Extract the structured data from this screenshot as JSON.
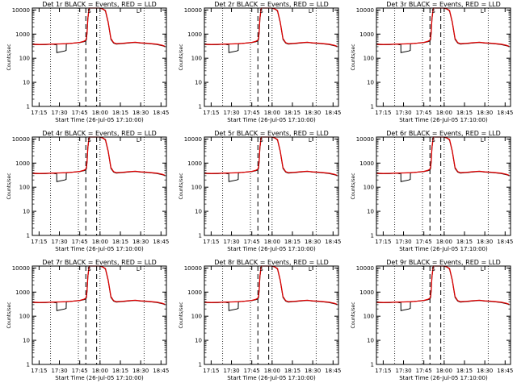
{
  "chart_data": {
    "type": "line",
    "panels": [
      {
        "title": "Det 1r BLACK = Events, RED = LLD"
      },
      {
        "title": "Det 2r BLACK = Events, RED = LLD"
      },
      {
        "title": "Det 3r BLACK = Events, RED = LLD"
      },
      {
        "title": "Det 4r BLACK = Events, RED = LLD"
      },
      {
        "title": "Det 5r BLACK = Events, RED = LLD"
      },
      {
        "title": "Det 6r BLACK = Events, RED = LLD"
      },
      {
        "title": "Det 7r BLACK = Events, RED = LLD"
      },
      {
        "title": "Det 8r BLACK = Events, RED = LLD"
      },
      {
        "title": "Det 9r BLACK = Events, RED = LLD"
      }
    ],
    "xlabel": "Start Time (26-Jul-05 17:10:00)",
    "ylabel": "Counts/sec",
    "x_ticks": [
      "17:15",
      "17:30",
      "17:45",
      "18:00",
      "18:15",
      "18:30",
      "18:45"
    ],
    "x_tick_minutes": [
      5,
      20,
      35,
      50,
      65,
      80,
      95
    ],
    "xlim_minutes": [
      0,
      99
    ],
    "y_scale": "log",
    "ylim": [
      1,
      12000
    ],
    "y_ticks": [
      1,
      10,
      100,
      1000,
      10000
    ],
    "y_tick_labels": [
      "1",
      "10",
      "100",
      "1000",
      "10000"
    ],
    "dotted_vlines_minutes": [
      13.5,
      34,
      50,
      82.5
    ],
    "dashed_vlines_minutes": [
      39.5,
      47.5
    ],
    "markers": [
      "S",
      "S",
      "S",
      "S",
      "S",
      "S",
      "S",
      "S",
      "S"
    ],
    "marker_minutes": [
      42
    ],
    "markers_right": [
      "L",
      "L",
      "L",
      "L",
      "L",
      "L",
      "L",
      "L",
      "L"
    ],
    "marker_right_minutes": [
      78
    ],
    "series": [
      {
        "name": "Events",
        "color": "#000000",
        "x": [
          0,
          5,
          10,
          15,
          17,
          18,
          18.1,
          24,
          25,
          25.1,
          28,
          32,
          35,
          38,
          39.5,
          40,
          40.5,
          41,
          42,
          43,
          44,
          46,
          48,
          50,
          52,
          54,
          56,
          58,
          60,
          62,
          65,
          68,
          70,
          72,
          74,
          76,
          80,
          84,
          88,
          92,
          96,
          98
        ],
        "y": [
          370,
          360,
          365,
          380,
          360,
          380,
          170,
          200,
          210,
          400,
          410,
          430,
          440,
          480,
          520,
          600,
          1200,
          4000,
          12000,
          12000,
          12000,
          12000,
          12000,
          12000,
          11000,
          9000,
          3000,
          600,
          420,
          380,
          400,
          410,
          420,
          430,
          440,
          450,
          420,
          410,
          390,
          370,
          330,
          300
        ]
      },
      {
        "name": "LLD",
        "color": "#dd0000",
        "x": [
          0,
          5,
          10,
          15,
          20,
          25,
          30,
          35,
          38,
          39.5,
          40,
          40.5,
          41,
          42,
          43,
          44,
          46,
          48,
          50,
          52,
          54,
          56,
          58,
          60,
          62,
          65,
          68,
          70,
          72,
          74,
          76,
          80,
          84,
          88,
          92,
          96,
          98
        ],
        "y": [
          380,
          370,
          375,
          385,
          390,
          400,
          420,
          450,
          500,
          560,
          700,
          1400,
          4500,
          12000,
          12000,
          12000,
          12000,
          12000,
          12000,
          11000,
          9500,
          3200,
          650,
          440,
          400,
          410,
          420,
          430,
          440,
          450,
          460,
          430,
          420,
          400,
          380,
          340,
          310
        ]
      }
    ]
  }
}
